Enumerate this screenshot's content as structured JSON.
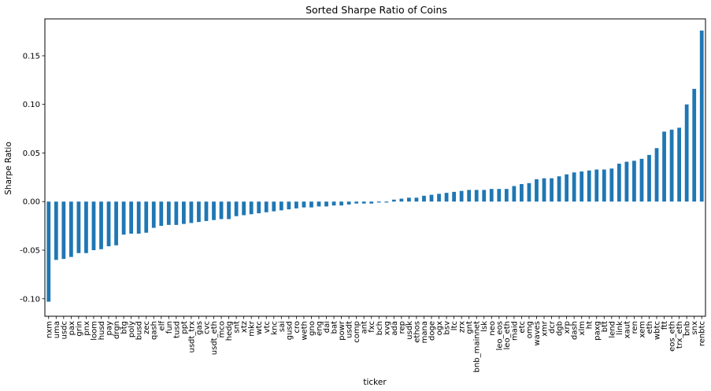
{
  "chart_data": {
    "type": "bar",
    "title": "Sorted Sharpe Ratio of Coins",
    "xlabel": "ticker",
    "ylabel": "Sharpe Ratio",
    "ylim": [
      -0.118,
      0.188
    ],
    "yticks": [
      -0.1,
      -0.05,
      0.0,
      0.05,
      0.1,
      0.15
    ],
    "ytick_labels": [
      "-0.10",
      "-0.05",
      "0.00",
      "0.05",
      "0.10",
      "0.15"
    ],
    "grid": false,
    "bar_color": "#1f77b4",
    "categories": [
      "nxm",
      "uma",
      "usdc",
      "pax",
      "grin",
      "pnx",
      "loom",
      "husd",
      "pay",
      "drgn",
      "btg",
      "poly",
      "busd",
      "zec",
      "qash",
      "elf",
      "fun",
      "tusd",
      "ppt",
      "usdt_trx",
      "gas",
      "cvc",
      "usdt_eth",
      "mco",
      "hedg",
      "snt",
      "xtz",
      "mkr",
      "wtc",
      "vtc",
      "knc",
      "sai",
      "gusd",
      "cro",
      "weth",
      "gno",
      "eng",
      "dai",
      "bat",
      "powr",
      "usdt",
      "comp",
      "ant",
      "fxc",
      "bch",
      "xvg",
      "ada",
      "rep",
      "usdk",
      "ethos",
      "mana",
      "doge",
      "ogx",
      "bsv",
      "ltc",
      "zrx",
      "gnt",
      "bnb_mainnet",
      "lsk",
      "neo",
      "leo_eos",
      "leo_eth",
      "maid",
      "etc",
      "omg",
      "waves",
      "xmr",
      "dcr",
      "dgb",
      "xrp",
      "dash",
      "xlm",
      "ht",
      "paxg",
      "btt",
      "lend",
      "link",
      "xaut",
      "ren",
      "xem",
      "eth",
      "wbtc",
      "ftt",
      "eos_eth",
      "trx_eth",
      "bnb",
      "snx",
      "renbtc"
    ],
    "values": [
      -0.103,
      -0.06,
      -0.059,
      -0.057,
      -0.053,
      -0.053,
      -0.05,
      -0.049,
      -0.046,
      -0.045,
      -0.034,
      -0.033,
      -0.033,
      -0.032,
      -0.027,
      -0.025,
      -0.024,
      -0.024,
      -0.023,
      -0.022,
      -0.021,
      -0.02,
      -0.019,
      -0.018,
      -0.018,
      -0.015,
      -0.014,
      -0.013,
      -0.012,
      -0.011,
      -0.01,
      -0.009,
      -0.008,
      -0.007,
      -0.006,
      -0.006,
      -0.005,
      -0.005,
      -0.004,
      -0.004,
      -0.003,
      -0.002,
      -0.002,
      -0.002,
      -0.001,
      -0.001,
      0.002,
      0.003,
      0.004,
      0.004,
      0.006,
      0.007,
      0.008,
      0.009,
      0.01,
      0.011,
      0.012,
      0.012,
      0.012,
      0.013,
      0.013,
      0.013,
      0.016,
      0.018,
      0.019,
      0.023,
      0.024,
      0.024,
      0.026,
      0.028,
      0.03,
      0.031,
      0.032,
      0.033,
      0.033,
      0.034,
      0.039,
      0.041,
      0.042,
      0.044,
      0.048,
      0.055,
      0.072,
      0.074,
      0.076,
      0.1,
      0.116,
      0.176
    ]
  }
}
